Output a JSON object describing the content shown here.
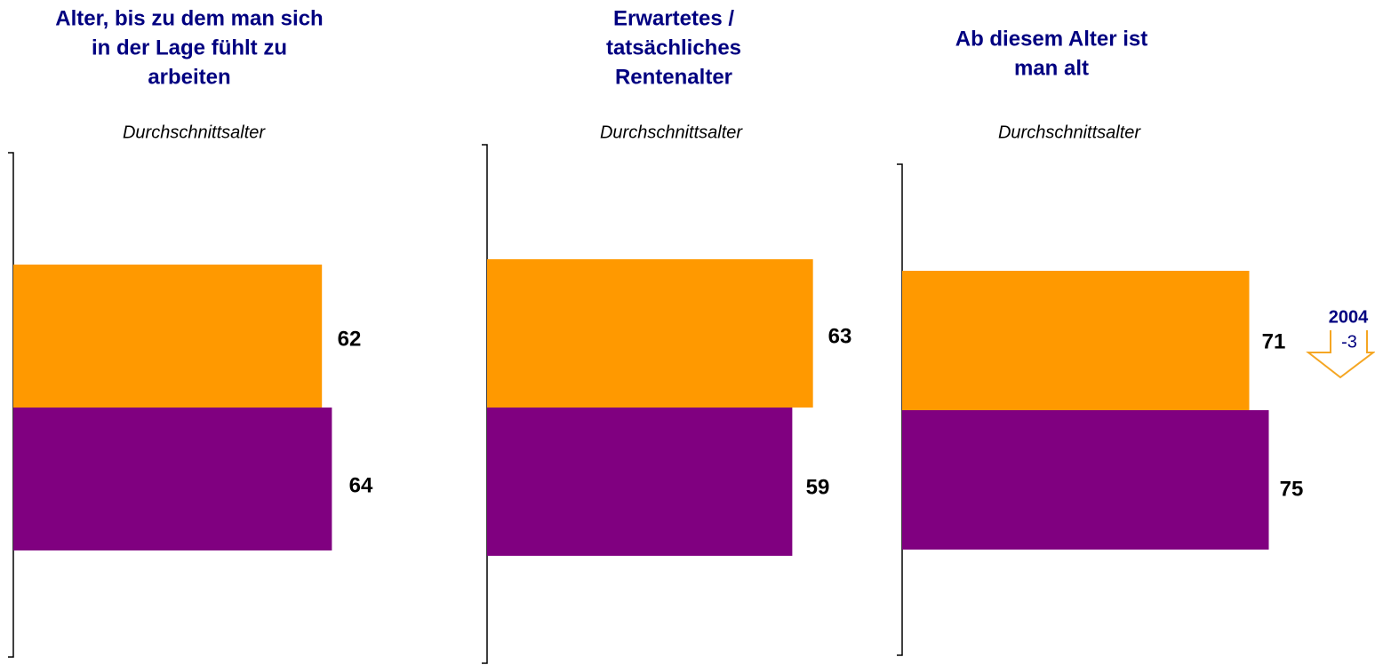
{
  "chart_data": [
    {
      "type": "bar",
      "orientation": "horizontal",
      "title": [
        "Alter, bis zu dem man sich",
        "in der Lage fühlt zu",
        "arbeiten"
      ],
      "subtitle": "Durchschnittsalter",
      "categories": [
        null,
        null
      ],
      "values": [
        62,
        64
      ],
      "colors": [
        "#ff9900",
        "#800080"
      ],
      "xlim": [
        0,
        100
      ]
    },
    {
      "type": "bar",
      "orientation": "horizontal",
      "title": [
        "Erwartetes /",
        "tatsächliches",
        "Rentenalter"
      ],
      "subtitle": "Durchschnittsalter",
      "categories": [
        null,
        null
      ],
      "values": [
        63,
        59
      ],
      "colors": [
        "#ff9900",
        "#800080"
      ],
      "xlim": [
        0,
        100
      ]
    },
    {
      "type": "bar",
      "orientation": "horizontal",
      "title": [
        "Ab diesem Alter ist",
        "man alt"
      ],
      "subtitle": "Durchschnittsalter",
      "categories": [
        null,
        null
      ],
      "values": [
        71,
        75
      ],
      "colors": [
        "#ff9900",
        "#800080"
      ],
      "xlim": [
        0,
        100
      ],
      "annotation": {
        "title": "2004",
        "change": -3
      }
    }
  ]
}
